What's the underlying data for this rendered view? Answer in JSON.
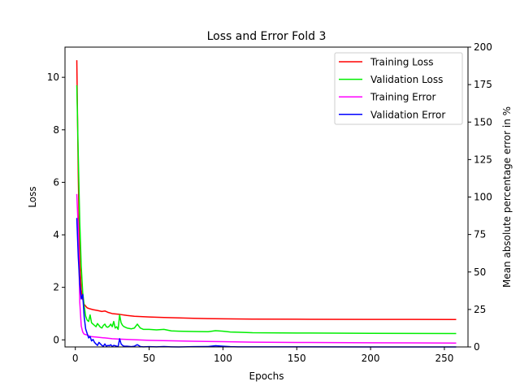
{
  "chart_data": {
    "type": "line",
    "title": "Loss and Error Fold 3",
    "xlabel": "Epochs",
    "ylabel": "Loss",
    "y2label": "Mean absolute percentage error in %",
    "xlim": [
      -7,
      266
    ],
    "ylim": [
      -0.27,
      11.15
    ],
    "y2lim": [
      0,
      200
    ],
    "xticks": [
      0,
      50,
      100,
      150,
      200,
      250
    ],
    "yticks": [
      0,
      2,
      4,
      6,
      8,
      10
    ],
    "y2ticks": [
      0,
      25,
      50,
      75,
      100,
      125,
      150,
      175,
      200
    ],
    "grid": false,
    "legend_position": "top-right",
    "series": [
      {
        "name": "Training Loss",
        "axis": "left",
        "color": "#ff0000",
        "points": [
          [
            1,
            10.65
          ],
          [
            2,
            6.2
          ],
          [
            3,
            3.0
          ],
          [
            4,
            1.9
          ],
          [
            5,
            1.55
          ],
          [
            6,
            1.35
          ],
          [
            8,
            1.22
          ],
          [
            10,
            1.18
          ],
          [
            12,
            1.15
          ],
          [
            15,
            1.12
          ],
          [
            18,
            1.08
          ],
          [
            20,
            1.1
          ],
          [
            22,
            1.05
          ],
          [
            25,
            1.0
          ],
          [
            30,
            0.97
          ],
          [
            35,
            0.93
          ],
          [
            40,
            0.9
          ],
          [
            50,
            0.87
          ],
          [
            60,
            0.85
          ],
          [
            80,
            0.82
          ],
          [
            100,
            0.8
          ],
          [
            120,
            0.79
          ],
          [
            150,
            0.785
          ],
          [
            200,
            0.78
          ],
          [
            258,
            0.775
          ]
        ]
      },
      {
        "name": "Validation Loss",
        "axis": "left",
        "color": "#00ee00",
        "points": [
          [
            1,
            9.7
          ],
          [
            2,
            7.0
          ],
          [
            3,
            4.5
          ],
          [
            4,
            2.8
          ],
          [
            5,
            1.8
          ],
          [
            6,
            1.3
          ],
          [
            7,
            0.9
          ],
          [
            8,
            0.75
          ],
          [
            9,
            0.7
          ],
          [
            10,
            0.95
          ],
          [
            11,
            0.65
          ],
          [
            12,
            0.6
          ],
          [
            13,
            0.55
          ],
          [
            14,
            0.5
          ],
          [
            15,
            0.62
          ],
          [
            16,
            0.55
          ],
          [
            17,
            0.48
          ],
          [
            18,
            0.45
          ],
          [
            19,
            0.55
          ],
          [
            20,
            0.6
          ],
          [
            21,
            0.5
          ],
          [
            22,
            0.48
          ],
          [
            23,
            0.52
          ],
          [
            24,
            0.6
          ],
          [
            25,
            0.5
          ],
          [
            26,
            0.7
          ],
          [
            27,
            0.45
          ],
          [
            28,
            0.5
          ],
          [
            29,
            0.4
          ],
          [
            30,
            0.95
          ],
          [
            31,
            0.65
          ],
          [
            32,
            0.55
          ],
          [
            33,
            0.5
          ],
          [
            35,
            0.45
          ],
          [
            38,
            0.42
          ],
          [
            40,
            0.45
          ],
          [
            42,
            0.6
          ],
          [
            44,
            0.45
          ],
          [
            46,
            0.4
          ],
          [
            50,
            0.4
          ],
          [
            55,
            0.38
          ],
          [
            60,
            0.4
          ],
          [
            65,
            0.34
          ],
          [
            70,
            0.33
          ],
          [
            80,
            0.32
          ],
          [
            90,
            0.31
          ],
          [
            95,
            0.35
          ],
          [
            100,
            0.33
          ],
          [
            105,
            0.3
          ],
          [
            110,
            0.29
          ],
          [
            120,
            0.27
          ],
          [
            150,
            0.26
          ],
          [
            200,
            0.25
          ],
          [
            258,
            0.24
          ]
        ]
      },
      {
        "name": "Training Error",
        "axis": "right",
        "color": "#ff00ff",
        "points": [
          [
            1,
            102
          ],
          [
            2,
            78
          ],
          [
            3,
            30
          ],
          [
            4,
            14
          ],
          [
            5,
            10
          ],
          [
            6,
            8.5
          ],
          [
            8,
            8
          ],
          [
            10,
            7
          ],
          [
            15,
            6.5
          ],
          [
            20,
            6
          ],
          [
            25,
            5.5
          ],
          [
            30,
            5.2
          ],
          [
            40,
            4.8
          ],
          [
            50,
            4.4
          ],
          [
            60,
            4.2
          ],
          [
            80,
            3.8
          ],
          [
            100,
            3.5
          ],
          [
            120,
            3.2
          ],
          [
            150,
            3.0
          ],
          [
            200,
            2.8
          ],
          [
            258,
            2.6
          ]
        ]
      },
      {
        "name": "Validation Error",
        "axis": "right",
        "color": "#0000ff",
        "points": [
          [
            1,
            86
          ],
          [
            2,
            60
          ],
          [
            3,
            42
          ],
          [
            4,
            32
          ],
          [
            5,
            35
          ],
          [
            6,
            20
          ],
          [
            7,
            12
          ],
          [
            8,
            9
          ],
          [
            9,
            6
          ],
          [
            10,
            7
          ],
          [
            11,
            4
          ],
          [
            12,
            5
          ],
          [
            13,
            3
          ],
          [
            14,
            2
          ],
          [
            15,
            1
          ],
          [
            16,
            3
          ],
          [
            17,
            2
          ],
          [
            18,
            1
          ],
          [
            19,
            0.5
          ],
          [
            20,
            2
          ],
          [
            21,
            0.5
          ],
          [
            22,
            1
          ],
          [
            23,
            0.8
          ],
          [
            24,
            1.5
          ],
          [
            25,
            0.3
          ],
          [
            26,
            1
          ],
          [
            27,
            0.8
          ],
          [
            28,
            0.5
          ],
          [
            29,
            0.2
          ],
          [
            30,
            5.5
          ],
          [
            31,
            2
          ],
          [
            32,
            1
          ],
          [
            33,
            0.5
          ],
          [
            35,
            0.5
          ],
          [
            38,
            0.2
          ],
          [
            40,
            0.5
          ],
          [
            42,
            1.5
          ],
          [
            44,
            0.3
          ],
          [
            46,
            0.1
          ],
          [
            50,
            0.2
          ],
          [
            55,
            0.1
          ],
          [
            60,
            0.3
          ],
          [
            65,
            0.1
          ],
          [
            70,
            0
          ],
          [
            80,
            0.2
          ],
          [
            90,
            0.3
          ],
          [
            95,
            0.8
          ],
          [
            100,
            0.5
          ],
          [
            105,
            0.2
          ],
          [
            110,
            0.1
          ],
          [
            120,
            0.1
          ],
          [
            150,
            0.1
          ],
          [
            200,
            0
          ],
          [
            258,
            0
          ]
        ]
      }
    ]
  }
}
